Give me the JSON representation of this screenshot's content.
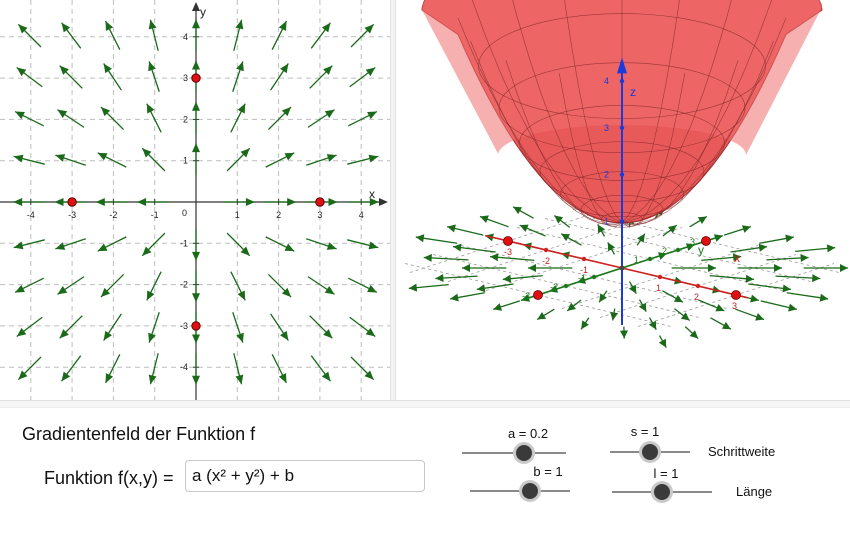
{
  "view2d": {
    "axis_x_label": "x",
    "axis_y_label": "y",
    "x_ticks": [
      "-4",
      "-3",
      "-2",
      "-1",
      "1",
      "2",
      "3",
      "4"
    ],
    "y_ticks": [
      "4",
      "3",
      "2",
      "1",
      "-1",
      "-2",
      "-3",
      "-4"
    ],
    "origin_label": "0",
    "points": [
      [
        -3,
        0
      ],
      [
        3,
        0
      ],
      [
        0,
        3
      ],
      [
        0,
        -3
      ]
    ],
    "colors": {
      "arrow": "#1a6a1a",
      "point": "#e01010",
      "grid": "#bdbdbd"
    }
  },
  "view3d": {
    "surface_color": "#e85a5a",
    "axis_x_label": "x",
    "axis_y_label": "y",
    "axis_z_label": "z",
    "x_ticks": [
      "-3",
      "-2",
      "-1",
      "1",
      "2",
      "3"
    ],
    "y_ticks": [
      "-3",
      "-2",
      "-1",
      "1",
      "2",
      "3"
    ],
    "z_ticks": [
      "1",
      "2",
      "3",
      "4"
    ]
  },
  "panel": {
    "title": "Gradientenfeld der Funktion f",
    "function_label": "Funktion f(x,y) =",
    "function_value": "a (x² + y²) + b",
    "sliders": [
      {
        "id": "a",
        "label": "a = 0.2",
        "value": 0.2,
        "min": -1,
        "max": 1
      },
      {
        "id": "b",
        "label": "b = 1",
        "value": 1,
        "min": -5,
        "max": 5
      },
      {
        "id": "s",
        "label": "s = 1",
        "value": 1,
        "min": 0,
        "max": 2
      },
      {
        "id": "l",
        "label": "l = 1",
        "value": 1,
        "min": 0,
        "max": 2
      }
    ],
    "s_caption": "Schrittweite",
    "l_caption": "Länge"
  }
}
